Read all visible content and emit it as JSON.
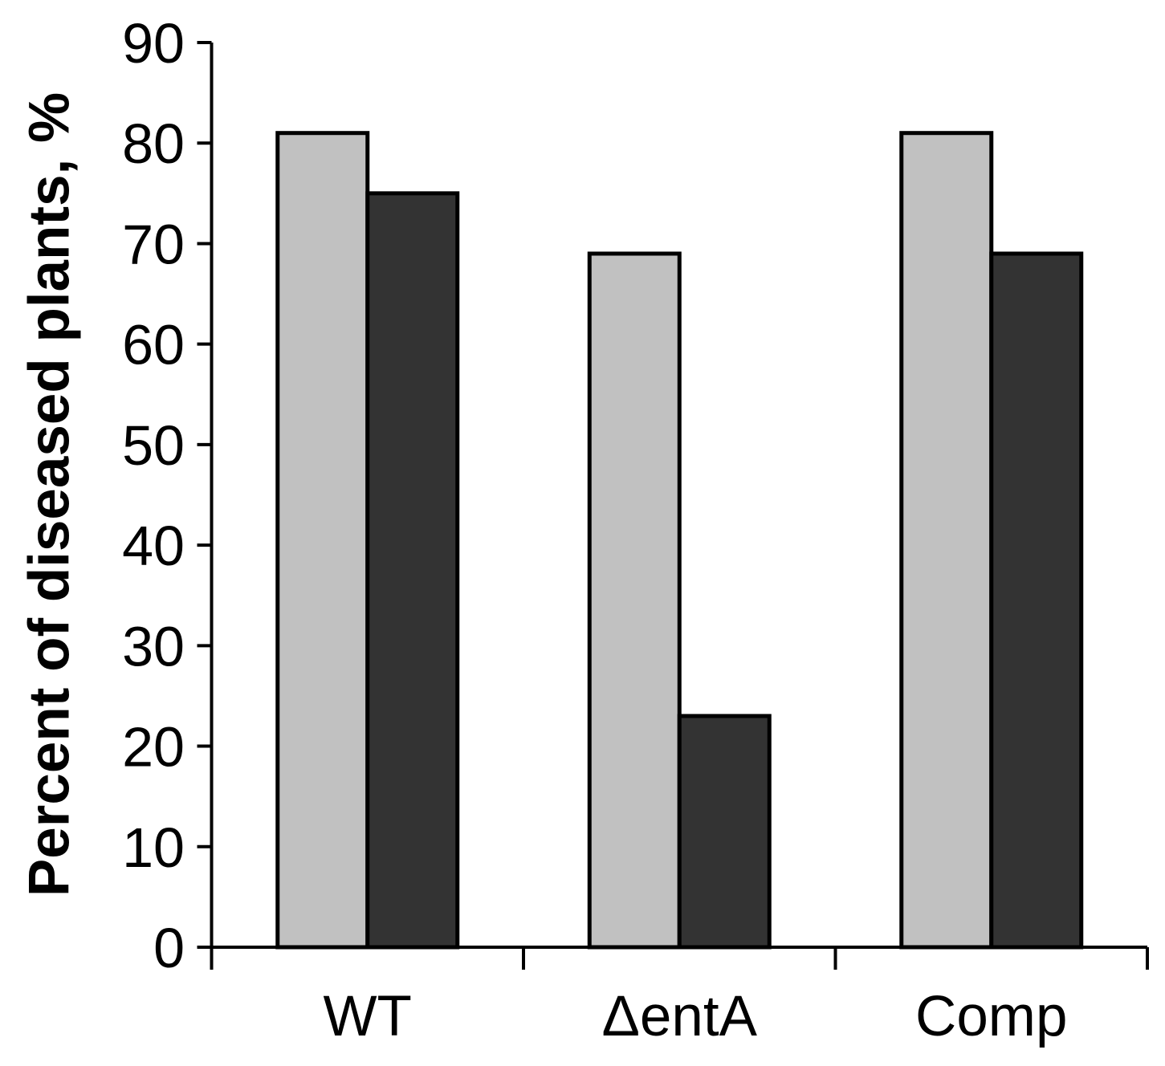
{
  "chart_data": {
    "type": "bar",
    "title": "",
    "ylabel": "Percent of diseased plants, %",
    "xlabel": "",
    "categories": [
      "WT",
      "ΔentA",
      "Comp"
    ],
    "series": [
      {
        "name": "light-gray-series",
        "color": "#C1C1C1",
        "values": [
          81,
          69,
          81
        ]
      },
      {
        "name": "dark-gray-series",
        "color": "#333333",
        "values": [
          75,
          23,
          69
        ]
      }
    ],
    "ylim": [
      0,
      90
    ],
    "yticks": [
      0,
      10,
      20,
      30,
      40,
      50,
      60,
      70,
      80,
      90
    ],
    "grid": false,
    "legend_position": "none",
    "bar_outline_color": "#000000",
    "axis_color": "#000000",
    "background_color": "#FFFFFF"
  }
}
